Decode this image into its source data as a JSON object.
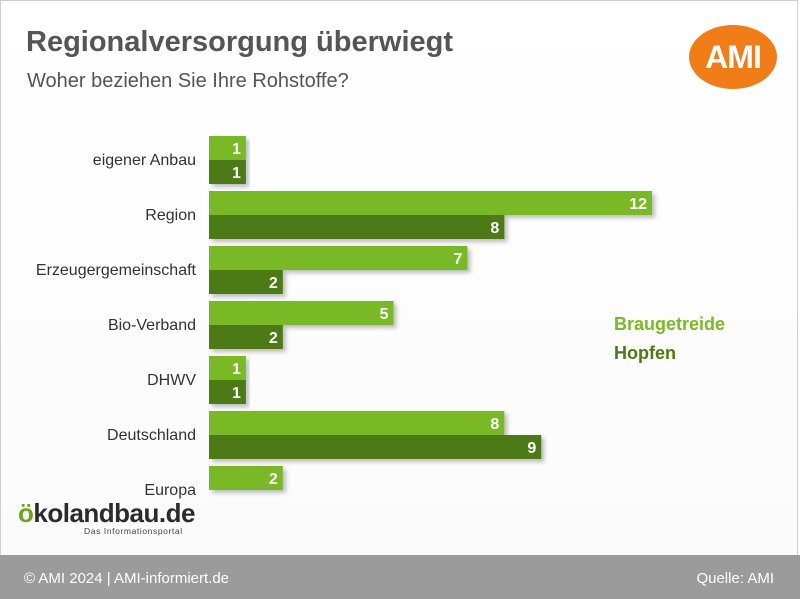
{
  "header": {
    "title": "Regionalversorgung überwiegt",
    "subtitle": "Woher beziehen Sie Ihre Rohstoffe?"
  },
  "logos": {
    "ami": "AMI",
    "oekolandbau_o": "ö",
    "oekolandbau_rest": "kolandbau.de",
    "oekolandbau_tagline": "Das Informationsportal"
  },
  "footer": {
    "copyright": "© AMI 2024 | AMI-informiert.de",
    "source": "Quelle: AMI"
  },
  "colors": {
    "braugetreide": "#7ab928",
    "hopfen": "#4b7a12",
    "ami_orange": "#f07d18",
    "footer_bg": "#9b9b9b"
  },
  "chart_data": {
    "type": "bar",
    "orientation": "horizontal",
    "categories": [
      "eigener Anbau",
      "Region",
      "Erzeugergemeinschaft",
      "Bio-Verband",
      "DHWV",
      "Deutschland",
      "Europa"
    ],
    "series": [
      {
        "name": "Braugetreide",
        "values": [
          1,
          12,
          7,
          5,
          1,
          8,
          2
        ]
      },
      {
        "name": "Hopfen",
        "values": [
          1,
          8,
          2,
          2,
          1,
          9,
          null
        ]
      }
    ],
    "title": "Regionalversorgung überwiegt",
    "subtitle": "Woher beziehen Sie Ihre Rohstoffe?",
    "xlabel": "",
    "ylabel": "",
    "xlim": [
      0,
      12
    ],
    "grid": false,
    "data_labels": true,
    "legend_position": "right"
  }
}
